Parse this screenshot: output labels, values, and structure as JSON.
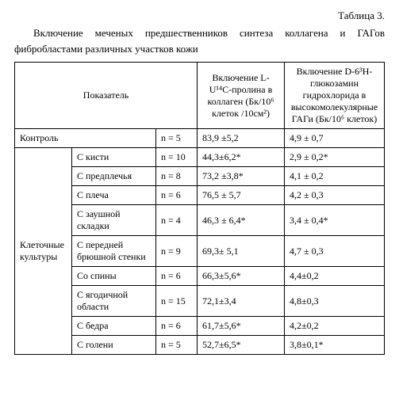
{
  "table_label": "Таблица 3.",
  "caption": "Включение меченых предшественников синтеза коллагена и ГАГов фибробластами различных участков кожи",
  "headers": {
    "indicator": "Показатель",
    "col_proline": "Включение L-U¹⁴C-пролина в коллаген (Бк/10⁶ клеток /10см²)",
    "col_glucosamine": "Включение D-6³H-глюкозамин гидрохлорида в высокомолекулярные ГАГи (Бк/10⁶ клеток)"
  },
  "control": {
    "label": "Контроль",
    "n": "n = 5",
    "v1": "83,9 ±5,2",
    "v2": "4,9 ± 0,7"
  },
  "group_label": "Клеточные культуры",
  "rows": [
    {
      "site": "С кисти",
      "n": "n = 10",
      "v1": "44,3±6,2*",
      "v2": "2,9 ± 0,2*"
    },
    {
      "site": "С предплечья",
      "n": "n = 8",
      "v1": "73,2 ±3,8*",
      "v2": "4,1 ± 0,2"
    },
    {
      "site": "С плеча",
      "n": "n = 6",
      "v1": "76,5 ± 5,7",
      "v2": "4,2 ± 0,3"
    },
    {
      "site": "С заушной складки",
      "n": "n = 4",
      "v1": "46,3 ± 6,4*",
      "v2": "3,4 ± 0,4*"
    },
    {
      "site": "С передней брюшной стенки",
      "n": "n = 9",
      "v1": "69,3± 5,1",
      "v2": "4,7 ± 0,3"
    },
    {
      "site": "Со спины",
      "n": "n = 6",
      "v1": "66,3±5,6*",
      "v2": "4,4±0,2"
    },
    {
      "site": "С ягодичной области",
      "n": "n = 15",
      "v1": "72,1±3,4",
      "v2": "4,8±0,3"
    },
    {
      "site": "С бедра",
      "n": "n = 6",
      "v1": "61,7±5,6*",
      "v2": "4,2±0,2"
    },
    {
      "site": "С голени",
      "n": "n = 5",
      "v1": "52,7±6,5*",
      "v2": "3,8±0,1*"
    }
  ]
}
